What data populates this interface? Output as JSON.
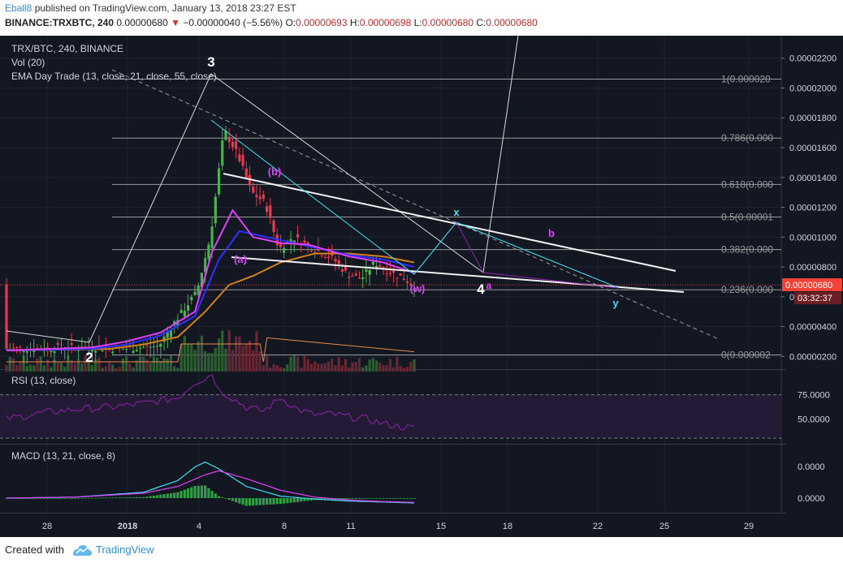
{
  "header": {
    "author": "Eball8",
    "published_text": "published on TradingView.com, January 13, 2018 23:27 EST",
    "symbol": "BINANCE:TRXBTC, 240",
    "last": "0.00000680",
    "change_arrow": "▼",
    "change": "−0.00000040 (−5.56%)",
    "o_label": "O:",
    "o_value": "0.00000693",
    "h_label": "H:",
    "h_value": "0.00000698",
    "l_label": "L:",
    "l_value": "0.00000680",
    "c_label": "C:",
    "c_value": "0.00000680"
  },
  "main_pane": {
    "legend": [
      "TRX/BTC, 240, BINANCE",
      "Vol (20)",
      "EMA Day Trade (13, close, 21, close, 55, close)"
    ],
    "price_labels": [
      "0.00002200",
      "0.00002000",
      "0.00001800",
      "0.00001600",
      "0.00001400",
      "0.00001200",
      "0.00001000",
      "0.00000800",
      "0.00000600",
      "0.00000400",
      "0.00000200"
    ],
    "last_price_tag": "0.00000680",
    "countdown_tag": "03:32:37",
    "fib_levels": [
      {
        "level": 1,
        "label": "1(0.000020"
      },
      {
        "level": 0.786,
        "label": "0.786(0.000"
      },
      {
        "level": 0.618,
        "label": "0.618(0.000"
      },
      {
        "level": 0.5,
        "label": "0.5(0.00001"
      },
      {
        "level": 0.382,
        "label": "0.382(0.000"
      },
      {
        "level": 0.236,
        "label": "0.236(0.000"
      },
      {
        "level": 0,
        "label": "0(0.000002"
      }
    ],
    "wave_labels": [
      {
        "text": "3",
        "color": "#ffffff"
      },
      {
        "text": "2",
        "color": "#ffffff"
      },
      {
        "text": "4",
        "color": "#ffffff"
      },
      {
        "text": "(b)",
        "color": "#e040fb"
      },
      {
        "text": "(a)",
        "color": "#e040fb"
      },
      {
        "text": "(w)",
        "color": "#e040fb"
      },
      {
        "text": "x",
        "color": "#40e0f0"
      },
      {
        "text": "b",
        "color": "#e040fb"
      },
      {
        "text": "a",
        "color": "#e040fb"
      },
      {
        "text": "y",
        "color": "#40e0f0"
      }
    ]
  },
  "rsi_pane": {
    "legend": "RSI (13, close)",
    "labels": [
      "75.0000",
      "50.0000"
    ]
  },
  "macd_pane": {
    "legend": "MACD (13, 21, close, 8)",
    "labels": [
      "0.0000",
      "0.0000"
    ]
  },
  "x_axis": {
    "labels": [
      "28",
      "2018",
      "4",
      "8",
      "11",
      "15",
      "18",
      "22",
      "25",
      "29"
    ]
  },
  "footer": {
    "created_with": "Created with",
    "brand": "TradingView"
  },
  "colors": {
    "background": "#131722",
    "ema13": "#e040fb",
    "ema21": "#3030ff",
    "ema55": "#d2801e",
    "cyan": "#40e0f0",
    "up": "#4caf50",
    "down": "#e53950",
    "last_price": "#f44336"
  },
  "chart_data": {
    "type": "candlestick",
    "title": "TRX/BTC, 240, BINANCE",
    "ylim": [
      1.2e-06,
      2.34e-05
    ],
    "x_ticks": [
      "28",
      "2018",
      "4",
      "8",
      "11",
      "15",
      "18",
      "22",
      "25",
      "29"
    ],
    "fib_retracement": {
      "top": 2.06e-05,
      "bottom": 2.1e-06
    },
    "price_path": [
      [
        0,
        2.5e-06
      ],
      [
        26,
        2.6e-06
      ],
      [
        34,
        2.5e-06
      ],
      [
        45,
        2.7e-06
      ],
      [
        48,
        3.8e-06
      ],
      [
        56,
        6.3e-06
      ],
      [
        60,
        1e-05
      ],
      [
        64,
        1.72e-05
      ],
      [
        68,
        1.55e-05
      ],
      [
        72,
        1.3e-05
      ],
      [
        76,
        1.23e-05
      ],
      [
        80,
        9.2e-06
      ],
      [
        84,
        1e-05
      ],
      [
        88,
        9.5e-06
      ],
      [
        92,
        9e-06
      ],
      [
        96,
        8.5e-06
      ],
      [
        100,
        7.5e-06
      ],
      [
        104,
        7.2e-06
      ],
      [
        108,
        8.3e-06
      ],
      [
        112,
        7.7e-06
      ],
      [
        116,
        7.3e-06
      ],
      [
        119,
        6.8e-06
      ]
    ],
    "ema13": [
      [
        0,
        2.4e-06
      ],
      [
        25,
        2.6e-06
      ],
      [
        35,
        3e-06
      ],
      [
        45,
        3.6e-06
      ],
      [
        55,
        5e-06
      ],
      [
        60,
        9e-06
      ],
      [
        66,
        1.18e-05
      ],
      [
        72,
        1e-05
      ],
      [
        80,
        9.6e-06
      ],
      [
        88,
        9.5e-06
      ],
      [
        100,
        8.7e-06
      ],
      [
        110,
        8.3e-06
      ],
      [
        119,
        7.6e-06
      ]
    ],
    "ema21": [
      [
        0,
        2.4e-06
      ],
      [
        25,
        2.5e-06
      ],
      [
        35,
        2.8e-06
      ],
      [
        45,
        3.4e-06
      ],
      [
        55,
        4.7e-06
      ],
      [
        62,
        8.5e-06
      ],
      [
        68,
        1.04e-05
      ],
      [
        76,
        1e-05
      ],
      [
        88,
        9.4e-06
      ],
      [
        100,
        8.8e-06
      ],
      [
        110,
        8.5e-06
      ],
      [
        119,
        8e-06
      ]
    ],
    "ema55": [
      [
        0,
        2.4e-06
      ],
      [
        30,
        2.5e-06
      ],
      [
        40,
        2.8e-06
      ],
      [
        50,
        3.3e-06
      ],
      [
        58,
        5e-06
      ],
      [
        65,
        6.8e-06
      ],
      [
        72,
        7.4e-06
      ],
      [
        80,
        8.3e-06
      ],
      [
        90,
        8.9e-06
      ],
      [
        100,
        8.9e-06
      ],
      [
        110,
        8.7e-06
      ],
      [
        119,
        8.3e-06
      ]
    ],
    "rsi_ylim": [
      25,
      100
    ],
    "rsi": [
      [
        0,
        50
      ],
      [
        10,
        56
      ],
      [
        20,
        60
      ],
      [
        30,
        62
      ],
      [
        40,
        66
      ],
      [
        50,
        72
      ],
      [
        55,
        88
      ],
      [
        58,
        92
      ],
      [
        60,
        97
      ],
      [
        62,
        80
      ],
      [
        65,
        74
      ],
      [
        70,
        62
      ],
      [
        75,
        58
      ],
      [
        80,
        72
      ],
      [
        85,
        60
      ],
      [
        90,
        54
      ],
      [
        95,
        55
      ],
      [
        100,
        52
      ],
      [
        105,
        50
      ],
      [
        110,
        45
      ],
      [
        115,
        42
      ],
      [
        119,
        40
      ]
    ],
    "rsi_levels": [
      75,
      50,
      30
    ],
    "macd": [
      [
        0,
        0
      ],
      [
        20,
        0.05
      ],
      [
        40,
        0.3
      ],
      [
        50,
        0.9
      ],
      [
        55,
        1.6
      ],
      [
        58,
        1.85
      ],
      [
        62,
        1.5
      ],
      [
        70,
        0.6
      ],
      [
        80,
        0.1
      ],
      [
        90,
        -0.05
      ],
      [
        100,
        -0.15
      ],
      [
        110,
        -0.2
      ],
      [
        119,
        -0.25
      ]
    ],
    "macd_signal": [
      [
        0,
        0
      ],
      [
        20,
        0.05
      ],
      [
        40,
        0.25
      ],
      [
        50,
        0.6
      ],
      [
        58,
        1.2
      ],
      [
        62,
        1.4
      ],
      [
        70,
        1.0
      ],
      [
        80,
        0.4
      ],
      [
        90,
        0.05
      ],
      [
        100,
        -0.1
      ],
      [
        110,
        -0.18
      ],
      [
        119,
        -0.22
      ]
    ]
  }
}
